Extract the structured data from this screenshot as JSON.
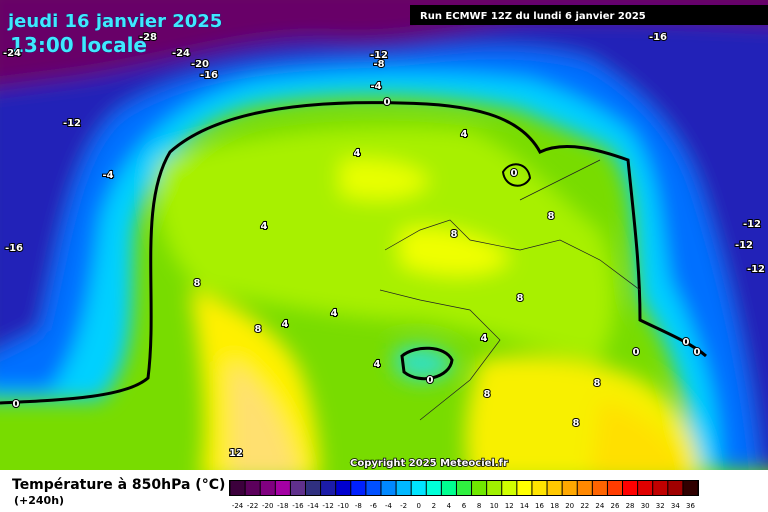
{
  "header": {
    "date": "jeudi 16 janvier 2025",
    "time": "13:00 locale",
    "run": "Run ECMWF 12Z du lundi 6 janvier 2025"
  },
  "map": {
    "copyright": "Copyright 2025 Meteociel.fr",
    "contour_labels": [
      "-28",
      "-24",
      "-20",
      "-16",
      "-24",
      "-12",
      "-8",
      "-4",
      "0",
      "-16",
      "-12",
      "-4",
      "-16",
      "4",
      "4",
      "0",
      "4",
      "8",
      "8",
      "-12",
      "-12",
      "-12",
      "8",
      "8",
      "4",
      "4",
      "8",
      "4",
      "4",
      "0",
      "0",
      "0",
      "0",
      "8",
      "8",
      "0",
      "8",
      "12"
    ]
  },
  "legend": {
    "title": "Température à 850hPa (°C)",
    "lead_time": "(+240h)",
    "levels": [
      -24,
      -22,
      -20,
      -18,
      -16,
      -14,
      -12,
      -10,
      -8,
      -6,
      -4,
      -2,
      0,
      2,
      4,
      6,
      8,
      10,
      12,
      14,
      16,
      18,
      20,
      22,
      24,
      26,
      28,
      30,
      32,
      34,
      36
    ],
    "colors": [
      "#3c003c",
      "#5c005c",
      "#800080",
      "#a400a4",
      "#60308c",
      "#303080",
      "#1c1ca8",
      "#0000d0",
      "#0020ff",
      "#0050ff",
      "#0088ff",
      "#00b8ff",
      "#00e4ff",
      "#00ffd8",
      "#00ff90",
      "#30f040",
      "#70e800",
      "#a0f000",
      "#d0ff00",
      "#ffff00",
      "#ffe400",
      "#ffc800",
      "#ffa800",
      "#ff8800",
      "#ff6400",
      "#ff3c00",
      "#ff0000",
      "#e00000",
      "#c00000",
      "#a00000",
      "#300000"
    ]
  }
}
